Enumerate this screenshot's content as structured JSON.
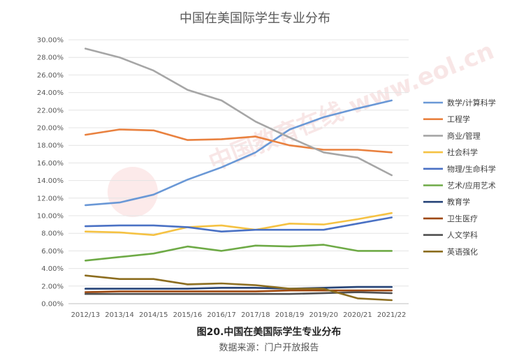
{
  "chart_data": {
    "type": "line",
    "title": "中国在美国际学生专业分布",
    "caption": "图20.中国在美国际学生专业分布",
    "source": "数据来源：门户开放报告",
    "watermark": "中国教育在线 www.eol.cn",
    "xlabel": "",
    "ylabel": "",
    "categories": [
      "2012/13",
      "2013/14",
      "2014/15",
      "2015/16",
      "2016/17",
      "2017/18",
      "2018/19",
      "2019/20",
      "2020/21",
      "2021/22"
    ],
    "y_ticks": [
      "0.00%",
      "2.00%",
      "4.00%",
      "6.00%",
      "8.00%",
      "10.00%",
      "12.00%",
      "14.00%",
      "16.00%",
      "18.00%",
      "20.00%",
      "22.00%",
      "24.00%",
      "26.00%",
      "28.00%",
      "30.00%"
    ],
    "ylim": [
      0,
      30
    ],
    "grid": true,
    "legend_position": "right",
    "series": [
      {
        "name": "数学/计算科学",
        "color": "#6A98D6",
        "values": [
          11.2,
          11.5,
          12.4,
          14.1,
          15.5,
          17.2,
          19.8,
          21.2,
          22.2,
          23.1
        ]
      },
      {
        "name": "工程学",
        "color": "#E9813F",
        "values": [
          19.2,
          19.8,
          19.7,
          18.6,
          18.7,
          19.0,
          18.0,
          17.5,
          17.5,
          17.2
        ]
      },
      {
        "name": "商业/管理",
        "color": "#A6A6A6",
        "values": [
          29.0,
          28.0,
          26.5,
          24.3,
          23.1,
          20.7,
          18.9,
          17.2,
          16.6,
          14.6
        ]
      },
      {
        "name": "社会科学",
        "color": "#F5C243",
        "values": [
          8.2,
          8.1,
          7.8,
          8.7,
          8.9,
          8.4,
          9.1,
          9.0,
          9.6,
          10.3
        ]
      },
      {
        "name": "物理/生命科学",
        "color": "#4A71C4",
        "values": [
          8.8,
          8.9,
          8.9,
          8.7,
          8.2,
          8.4,
          8.4,
          8.4,
          9.1,
          9.8
        ]
      },
      {
        "name": "艺术/应用艺术",
        "color": "#6EAA46",
        "values": [
          4.9,
          5.3,
          5.7,
          6.5,
          6.0,
          6.6,
          6.5,
          6.7,
          6.0,
          6.0
        ]
      },
      {
        "name": "教育学",
        "color": "#264478",
        "values": [
          1.7,
          1.7,
          1.7,
          1.7,
          1.8,
          1.8,
          1.7,
          1.8,
          1.9,
          1.9
        ]
      },
      {
        "name": "卫生医疗",
        "color": "#9E480E",
        "values": [
          1.3,
          1.4,
          1.4,
          1.4,
          1.4,
          1.4,
          1.5,
          1.5,
          1.5,
          1.5
        ]
      },
      {
        "name": "人文学科",
        "color": "#505050",
        "values": [
          1.1,
          1.1,
          1.1,
          1.1,
          1.1,
          1.1,
          1.1,
          1.2,
          1.3,
          1.2
        ]
      },
      {
        "name": "英语强化",
        "color": "#8C6D1F",
        "values": [
          3.2,
          2.8,
          2.8,
          2.2,
          2.3,
          2.1,
          1.7,
          1.7,
          0.6,
          0.4
        ]
      }
    ]
  }
}
